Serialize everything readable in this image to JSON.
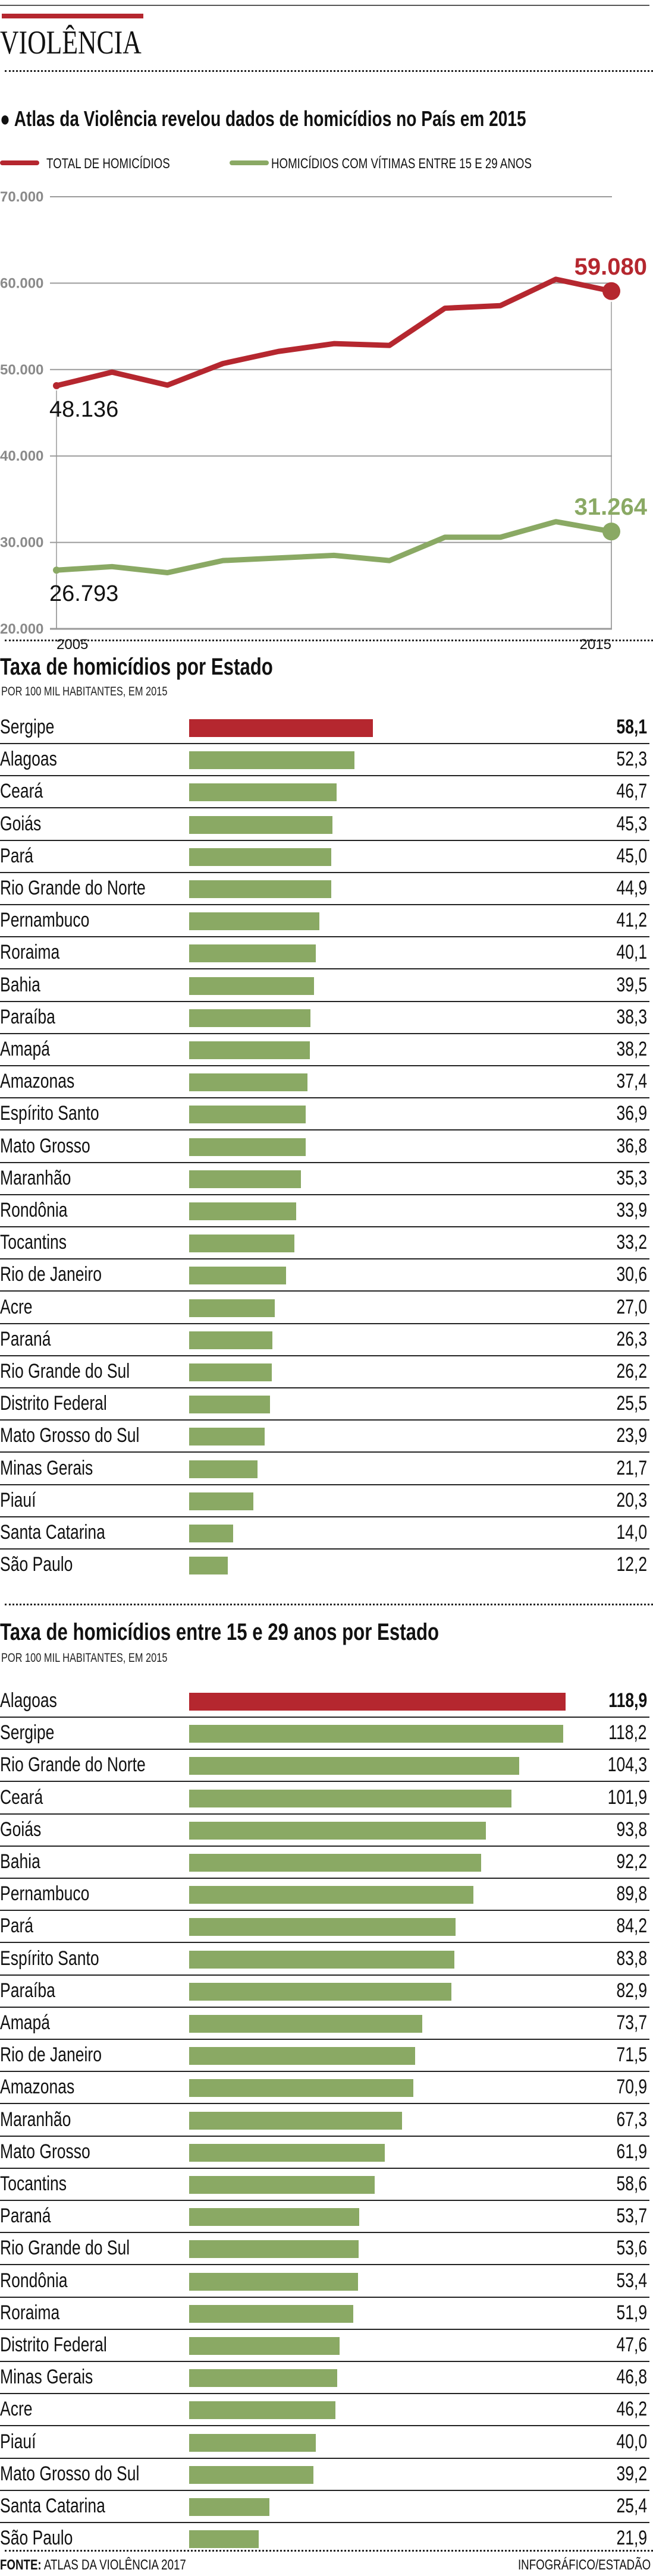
{
  "header": {
    "kicker": "VIOLÊNCIA",
    "subtitle": "Atlas da Violência revelou dados de homicídios no País em 2015"
  },
  "colors": {
    "red": "#b5272f",
    "green": "#8aa964",
    "grid": "#9a9a9a"
  },
  "chart_data": [
    {
      "type": "line",
      "title": "Atlas da Violência revelou dados de homicídios no País em 2015",
      "x": [
        2005,
        2006,
        2007,
        2008,
        2009,
        2010,
        2011,
        2012,
        2013,
        2014,
        2015
      ],
      "x_tick_labels": [
        "2005",
        "2015"
      ],
      "y_tick_labels": [
        "70.000",
        "60.000",
        "50.000",
        "40.000",
        "30.000",
        "20.000"
      ],
      "ylim": [
        20000,
        70000
      ],
      "grid": true,
      "legend_position": "top-left",
      "series": [
        {
          "name": "TOTAL DE HOMICÍDIOS",
          "color": "#b5272f",
          "values": [
            48136,
            49700,
            48200,
            50700,
            52100,
            53000,
            52800,
            57100,
            57400,
            60450,
            59080
          ],
          "start_label": "48.136",
          "end_label": "59.080"
        },
        {
          "name": "HOMICÍDIOS COM VÍTIMAS ENTRE 15 E 29 ANOS",
          "color": "#8aa964",
          "values": [
            26793,
            27200,
            26500,
            27900,
            28200,
            28500,
            27900,
            30600,
            30600,
            32400,
            31264
          ],
          "start_label": "26.793",
          "end_label": "31.264"
        }
      ]
    },
    {
      "type": "bar",
      "title": "Taxa de homicídios por Estado",
      "subtitle": "POR 100 MIL HABITANTES, EM 2015",
      "categories": [
        "Sergipe",
        "Alagoas",
        "Ceará",
        "Goiás",
        "Pará",
        "Rio Grande do Norte",
        "Pernambuco",
        "Roraima",
        "Bahia",
        "Paraíba",
        "Amapá",
        "Amazonas",
        "Espírito Santo",
        "Mato Grosso",
        "Maranhão",
        "Rondônia",
        "Tocantins",
        "Rio de Janeiro",
        "Acre",
        "Paraná",
        "Rio Grande do Sul",
        "Distrito Federal",
        "Mato Grosso do Sul",
        "Minas Gerais",
        "Piauí",
        "Santa Catarina",
        "São Paulo"
      ],
      "values": [
        58.1,
        52.3,
        46.7,
        45.3,
        45.0,
        44.9,
        41.2,
        40.1,
        39.5,
        38.3,
        38.2,
        37.4,
        36.9,
        36.8,
        35.3,
        33.9,
        33.2,
        30.6,
        27.0,
        26.3,
        26.2,
        25.5,
        23.9,
        21.7,
        20.3,
        14.0,
        12.2
      ],
      "labels": [
        "58,1",
        "52,3",
        "46,7",
        "45,3",
        "45,0",
        "44,9",
        "41,2",
        "40,1",
        "39,5",
        "38,3",
        "38,2",
        "37,4",
        "36,9",
        "36,8",
        "35,3",
        "33,9",
        "33,2",
        "30,6",
        "27,0",
        "26,3",
        "26,2",
        "25,5",
        "23,9",
        "21,7",
        "20,3",
        "14,0",
        "12,2"
      ]
    },
    {
      "type": "bar",
      "title": "Taxa de homicídios entre 15 e 29 anos por Estado",
      "subtitle": "POR 100 MIL HABITANTES, EM 2015",
      "categories": [
        "Alagoas",
        "Sergipe",
        "Rio Grande do Norte",
        "Ceará",
        "Goiás",
        "Bahia",
        "Pernambuco",
        "Pará",
        "Espírito Santo",
        "Paraíba",
        "Amapá",
        "Rio de Janeiro",
        "Amazonas",
        "Maranhão",
        "Mato Grosso",
        "Tocantins",
        "Paraná",
        "Rio Grande do Sul",
        "Rondônia",
        "Roraima",
        "Distrito Federal",
        "Minas Gerais",
        "Acre",
        "Piauí",
        "Mato Grosso do Sul",
        "Santa Catarina",
        "São Paulo"
      ],
      "values": [
        118.9,
        118.2,
        104.3,
        101.9,
        93.8,
        92.2,
        89.8,
        84.2,
        83.8,
        82.9,
        73.7,
        71.5,
        70.9,
        67.3,
        61.9,
        58.6,
        53.7,
        53.6,
        53.4,
        51.9,
        47.6,
        46.8,
        46.2,
        40.0,
        39.2,
        25.4,
        21.9
      ],
      "labels": [
        "118,9",
        "118,2",
        "104,3",
        "101,9",
        "93,8",
        "92,2",
        "89,8",
        "84,2",
        "83,8",
        "82,9",
        "73,7",
        "71,5",
        "70,9",
        "67,3",
        "61,9",
        "58,6",
        "53,7",
        "53,6",
        "53,4",
        "51,9",
        "47,6",
        "46,8",
        "46,2",
        "40,0",
        "39,2",
        "25,4",
        "21,9"
      ]
    }
  ],
  "footer": {
    "source_label": "FONTE:",
    "source": "ATLAS DA VIOLÊNCIA 2017",
    "credit": "INFOGRÁFICO/ESTADÃO"
  }
}
